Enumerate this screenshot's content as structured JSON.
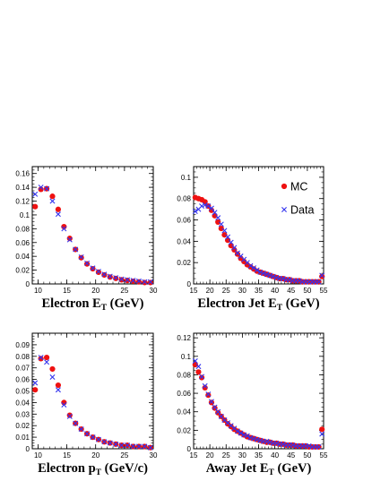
{
  "colors": {
    "mc": "#ee1111",
    "data": "#3333ee",
    "axis": "#000000"
  },
  "chart_data": [
    {
      "type": "scatter",
      "xlabel": {
        "main": "Electron E",
        "sub": "T",
        "unit": " (GeV)"
      },
      "xlim": [
        9,
        30
      ],
      "ylim": [
        0,
        0.17
      ],
      "xticks": [
        "10",
        "15",
        "20",
        "25",
        "30"
      ],
      "yticks": [
        "0",
        "0.02",
        "0.04",
        "0.06",
        "0.08",
        "0.1",
        "0.12",
        "0.14",
        "0.16"
      ],
      "legend": null,
      "series": [
        {
          "name": "MC",
          "marker": "circle",
          "x": [
            9.5,
            10.5,
            11.5,
            12.5,
            13.5,
            14.5,
            15.5,
            16.5,
            17.5,
            18.5,
            19.5,
            20.5,
            21.5,
            22.5,
            23.5,
            24.5,
            25.5,
            26.5,
            27.5,
            28.5,
            29.5
          ],
          "y": [
            0.112,
            0.137,
            0.138,
            0.127,
            0.108,
            0.083,
            0.066,
            0.05,
            0.038,
            0.029,
            0.022,
            0.017,
            0.013,
            0.01,
            0.008,
            0.006,
            0.005,
            0.004,
            0.003,
            0.002,
            0.002
          ]
        },
        {
          "name": "Data",
          "marker": "x",
          "x": [
            9.5,
            10.5,
            11.5,
            12.5,
            13.5,
            14.5,
            15.5,
            16.5,
            17.5,
            18.5,
            19.5,
            20.5,
            21.5,
            22.5,
            23.5,
            24.5,
            25.5,
            26.5,
            27.5,
            28.5,
            29.5
          ],
          "y": [
            0.13,
            0.14,
            0.138,
            0.12,
            0.101,
            0.08,
            0.064,
            0.05,
            0.039,
            0.03,
            0.023,
            0.018,
            0.014,
            0.011,
            0.009,
            0.007,
            0.006,
            0.005,
            0.004,
            0.003,
            0.003
          ]
        }
      ]
    },
    {
      "type": "scatter",
      "xlabel": {
        "main": "Electron Jet E",
        "sub": "T",
        "unit": " (GeV)"
      },
      "xlim": [
        15,
        55
      ],
      "ylim": [
        0,
        0.11
      ],
      "xticks": [
        "15",
        "20",
        "25",
        "30",
        "35",
        "40",
        "45",
        "50",
        "55"
      ],
      "yticks": [
        "0",
        "0.02",
        "0.04",
        "0.06",
        "0.08",
        "0.1"
      ],
      "legend": [
        {
          "label": "MC",
          "marker": "circle"
        },
        {
          "label": "Data",
          "marker": "x"
        }
      ],
      "series": [
        {
          "name": "MC",
          "marker": "circle",
          "x": [
            15.5,
            16.5,
            17.5,
            18.5,
            19.5,
            20.5,
            21.5,
            22.5,
            23.5,
            24.5,
            25.5,
            26.5,
            27.5,
            28.5,
            29.5,
            30.5,
            31.5,
            32.5,
            33.5,
            34.5,
            35.5,
            36.5,
            37.5,
            38.5,
            39.5,
            40.5,
            41.5,
            42.5,
            43.5,
            44.5,
            45.5,
            46.5,
            47.5,
            48.5,
            49.5,
            50.5,
            51.5,
            52.5,
            53.5,
            54.5
          ],
          "y": [
            0.081,
            0.08,
            0.079,
            0.077,
            0.073,
            0.069,
            0.064,
            0.058,
            0.052,
            0.046,
            0.041,
            0.036,
            0.032,
            0.028,
            0.024,
            0.021,
            0.018,
            0.016,
            0.014,
            0.012,
            0.011,
            0.01,
            0.009,
            0.008,
            0.007,
            0.006,
            0.005,
            0.005,
            0.004,
            0.004,
            0.003,
            0.003,
            0.003,
            0.002,
            0.002,
            0.002,
            0.002,
            0.002,
            0.002,
            0.007
          ]
        },
        {
          "name": "Data",
          "marker": "x",
          "x": [
            15.5,
            16.5,
            17.5,
            18.5,
            19.5,
            20.5,
            21.5,
            22.5,
            23.5,
            24.5,
            25.5,
            26.5,
            27.5,
            28.5,
            29.5,
            30.5,
            31.5,
            32.5,
            33.5,
            34.5,
            35.5,
            36.5,
            37.5,
            38.5,
            39.5,
            40.5,
            41.5,
            42.5,
            43.5,
            44.5,
            45.5,
            46.5,
            47.5,
            48.5,
            49.5,
            50.5,
            51.5,
            52.5,
            53.5,
            54.5
          ],
          "y": [
            0.068,
            0.07,
            0.073,
            0.074,
            0.073,
            0.071,
            0.067,
            0.062,
            0.056,
            0.05,
            0.044,
            0.039,
            0.034,
            0.029,
            0.026,
            0.023,
            0.02,
            0.017,
            0.015,
            0.013,
            0.011,
            0.01,
            0.009,
            0.008,
            0.007,
            0.006,
            0.005,
            0.005,
            0.004,
            0.004,
            0.003,
            0.003,
            0.003,
            0.002,
            0.002,
            0.002,
            0.002,
            0.002,
            0.002,
            0.008
          ]
        }
      ]
    },
    {
      "type": "scatter",
      "xlabel": {
        "main": "Electron p",
        "sub": "T",
        "unit": " (GeV/c)"
      },
      "xlim": [
        9,
        30
      ],
      "ylim": [
        0,
        0.1
      ],
      "xticks": [
        "10",
        "15",
        "20",
        "25",
        "30"
      ],
      "yticks": [
        "0",
        "0.01",
        "0.02",
        "0.03",
        "0.04",
        "0.05",
        "0.06",
        "0.07",
        "0.08",
        "0.09"
      ],
      "legend": null,
      "series": [
        {
          "name": "MC",
          "marker": "circle",
          "x": [
            9.5,
            10.5,
            11.5,
            12.5,
            13.5,
            14.5,
            15.5,
            16.5,
            17.5,
            18.5,
            19.5,
            20.5,
            21.5,
            22.5,
            23.5,
            24.5,
            25.5,
            26.5,
            27.5,
            28.5,
            29.5
          ],
          "y": [
            0.051,
            0.078,
            0.079,
            0.069,
            0.055,
            0.04,
            0.029,
            0.022,
            0.017,
            0.013,
            0.01,
            0.008,
            0.006,
            0.005,
            0.004,
            0.003,
            0.003,
            0.002,
            0.002,
            0.002,
            0.001
          ]
        },
        {
          "name": "Data",
          "marker": "x",
          "x": [
            9.5,
            10.5,
            11.5,
            12.5,
            13.5,
            14.5,
            15.5,
            16.5,
            17.5,
            18.5,
            19.5,
            20.5,
            21.5,
            22.5,
            23.5,
            24.5,
            25.5,
            26.5,
            27.5,
            28.5,
            29.5
          ],
          "y": [
            0.057,
            0.079,
            0.075,
            0.062,
            0.051,
            0.038,
            0.028,
            0.022,
            0.017,
            0.013,
            0.01,
            0.008,
            0.006,
            0.005,
            0.004,
            0.003,
            0.003,
            0.002,
            0.002,
            0.002,
            0.001
          ]
        }
      ]
    },
    {
      "type": "scatter",
      "xlabel": {
        "main": "Away Jet E",
        "sub": "T",
        "unit": " (GeV)"
      },
      "xlim": [
        15,
        55
      ],
      "ylim": [
        0,
        0.125
      ],
      "xticks": [
        "15",
        "20",
        "25",
        "30",
        "35",
        "40",
        "45",
        "50",
        "55"
      ],
      "yticks": [
        "0",
        "0.02",
        "0.04",
        "0.06",
        "0.08",
        "0.1",
        "0.12"
      ],
      "legend": null,
      "series": [
        {
          "name": "MC",
          "marker": "circle",
          "x": [
            15.5,
            16.5,
            17.5,
            18.5,
            19.5,
            20.5,
            21.5,
            22.5,
            23.5,
            24.5,
            25.5,
            26.5,
            27.5,
            28.5,
            29.5,
            30.5,
            31.5,
            32.5,
            33.5,
            34.5,
            35.5,
            36.5,
            37.5,
            38.5,
            39.5,
            40.5,
            41.5,
            42.5,
            43.5,
            44.5,
            45.5,
            46.5,
            47.5,
            48.5,
            49.5,
            50.5,
            51.5,
            52.5,
            53.5,
            54.5
          ],
          "y": [
            0.091,
            0.083,
            0.077,
            0.066,
            0.058,
            0.05,
            0.044,
            0.039,
            0.035,
            0.031,
            0.027,
            0.024,
            0.021,
            0.019,
            0.017,
            0.015,
            0.013,
            0.012,
            0.011,
            0.01,
            0.009,
            0.008,
            0.007,
            0.007,
            0.006,
            0.006,
            0.005,
            0.005,
            0.004,
            0.004,
            0.004,
            0.003,
            0.003,
            0.003,
            0.003,
            0.002,
            0.002,
            0.002,
            0.002,
            0.021
          ]
        },
        {
          "name": "Data",
          "marker": "x",
          "x": [
            15.5,
            16.5,
            17.5,
            18.5,
            19.5,
            20.5,
            21.5,
            22.5,
            23.5,
            24.5,
            25.5,
            26.5,
            27.5,
            28.5,
            29.5,
            30.5,
            31.5,
            32.5,
            33.5,
            34.5,
            35.5,
            36.5,
            37.5,
            38.5,
            39.5,
            40.5,
            41.5,
            42.5,
            43.5,
            44.5,
            45.5,
            46.5,
            47.5,
            48.5,
            49.5,
            50.5,
            51.5,
            52.5,
            53.5,
            54.5
          ],
          "y": [
            0.095,
            0.089,
            0.078,
            0.068,
            0.059,
            0.051,
            0.045,
            0.04,
            0.035,
            0.031,
            0.028,
            0.025,
            0.022,
            0.019,
            0.017,
            0.015,
            0.014,
            0.012,
            0.011,
            0.01,
            0.009,
            0.008,
            0.008,
            0.007,
            0.006,
            0.006,
            0.005,
            0.005,
            0.004,
            0.004,
            0.004,
            0.003,
            0.003,
            0.003,
            0.003,
            0.003,
            0.002,
            0.002,
            0.002,
            0.016
          ]
        }
      ]
    }
  ]
}
